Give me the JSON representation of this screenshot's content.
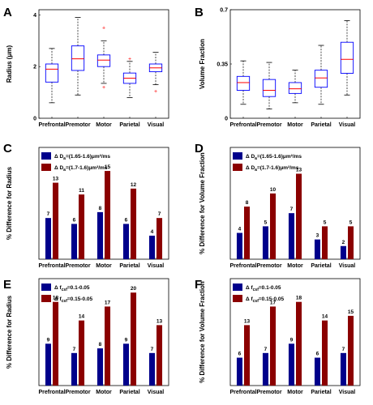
{
  "colors": {
    "blue": "#00008B",
    "red": "#8B0000",
    "box_outline": "#0000FF",
    "median": "#FF0000",
    "outlier": "#FF0000",
    "axis": "#000000"
  },
  "chart_data": [
    {
      "id": "A",
      "type": "boxplot",
      "panel_label": "A",
      "ylabel": "Radius (μm)",
      "categories": [
        "Prefrontal",
        "Premotor",
        "Motor",
        "Parietal",
        "Visual"
      ],
      "ylim": [
        0,
        4.2
      ],
      "yticks": [
        0,
        2,
        4
      ],
      "boxes": [
        {
          "whisker_low": 0.6,
          "q1": 1.4,
          "median": 1.9,
          "q3": 2.1,
          "whisker_high": 2.7,
          "outliers": []
        },
        {
          "whisker_low": 0.9,
          "q1": 1.85,
          "median": 2.3,
          "q3": 2.8,
          "whisker_high": 3.9,
          "outliers": []
        },
        {
          "whisker_low": 1.35,
          "q1": 2.0,
          "median": 2.25,
          "q3": 2.45,
          "whisker_high": 3.0,
          "outliers": [
            3.5,
            1.2
          ]
        },
        {
          "whisker_low": 0.8,
          "q1": 1.35,
          "median": 1.55,
          "q3": 1.75,
          "whisker_high": 2.2,
          "outliers": [
            2.3
          ]
        },
        {
          "whisker_low": 1.3,
          "q1": 1.8,
          "median": 1.95,
          "q3": 2.1,
          "whisker_high": 2.55,
          "outliers": [
            1.05
          ]
        }
      ]
    },
    {
      "id": "B",
      "type": "boxplot",
      "panel_label": "B",
      "ylabel": "Volume Fraction",
      "categories": [
        "Prefrontal",
        "Premotor",
        "Motor",
        "Parietal",
        "Visual"
      ],
      "ylim": [
        0,
        0.7
      ],
      "yticks": [
        0,
        0.35,
        0.7
      ],
      "ytick_labels": [
        "0",
        "0.35",
        "0.7"
      ],
      "boxes": [
        {
          "whisker_low": 0.09,
          "q1": 0.18,
          "median": 0.23,
          "q3": 0.27,
          "whisker_high": 0.37,
          "outliers": []
        },
        {
          "whisker_low": 0.06,
          "q1": 0.14,
          "median": 0.18,
          "q3": 0.25,
          "whisker_high": 0.36,
          "outliers": []
        },
        {
          "whisker_low": 0.1,
          "q1": 0.16,
          "median": 0.19,
          "q3": 0.23,
          "whisker_high": 0.31,
          "outliers": []
        },
        {
          "whisker_low": 0.09,
          "q1": 0.2,
          "median": 0.26,
          "q3": 0.31,
          "whisker_high": 0.47,
          "outliers": []
        },
        {
          "whisker_low": 0.15,
          "q1": 0.29,
          "median": 0.38,
          "q3": 0.49,
          "whisker_high": 0.63,
          "outliers": []
        }
      ]
    },
    {
      "id": "C",
      "type": "bar",
      "panel_label": "C",
      "ylabel": "% Difference for Radius",
      "categories": [
        "Prefrontal",
        "Premotor",
        "Motor",
        "Parietal",
        "Visual"
      ],
      "ylim": [
        0,
        19
      ],
      "series": [
        {
          "legend_pre": "Δ D",
          "legend_sub": "a",
          "legend_post": "=(1.65-1.6)μm²/ms",
          "values": [
            7,
            6,
            8,
            6,
            4
          ]
        },
        {
          "legend_pre": "Δ D",
          "legend_sub": "a",
          "legend_post": "=(1.7-1.6)μm²/ms",
          "values": [
            13,
            11,
            15,
            12,
            7
          ]
        }
      ]
    },
    {
      "id": "D",
      "type": "bar",
      "panel_label": "D",
      "ylabel": "% Difference for Volume Fraction",
      "categories": [
        "Prefrontal",
        "Premotor",
        "Motor",
        "Parietal",
        "Visual"
      ],
      "ylim": [
        0,
        17
      ],
      "series": [
        {
          "legend_pre": "Δ D",
          "legend_sub": "a",
          "legend_post": "=(1.65-1.6)μm²/ms",
          "values": [
            4,
            5,
            7,
            3,
            2
          ]
        },
        {
          "legend_pre": "Δ D",
          "legend_sub": "a",
          "legend_post": "=(1.7-1.6)μm²/ms",
          "values": [
            8,
            10,
            13,
            5,
            5
          ]
        }
      ]
    },
    {
      "id": "E",
      "type": "bar",
      "panel_label": "E",
      "ylabel": "% Difference for Radius",
      "categories": [
        "Prefrontal",
        "Premotor",
        "Motor",
        "Parietal",
        "Visual"
      ],
      "ylim": [
        0,
        23
      ],
      "series": [
        {
          "legend_pre": "Δ f",
          "legend_sub": "csf",
          "legend_post": "=0.1-0.05",
          "values": [
            9,
            7,
            8,
            9,
            7
          ]
        },
        {
          "legend_pre": "Δ f",
          "legend_sub": "csf",
          "legend_post": "=0.15-0.05",
          "values": [
            18,
            14,
            17,
            20,
            13
          ]
        }
      ]
    },
    {
      "id": "F",
      "type": "bar",
      "panel_label": "F",
      "ylabel": "% Difference for Volume Fraction",
      "categories": [
        "Prefrontal",
        "Premotor",
        "Motor",
        "Parietal",
        "Visual"
      ],
      "ylim": [
        0,
        23
      ],
      "series": [
        {
          "legend_pre": "Δ f",
          "legend_sub": "csf",
          "legend_post": "=0.1-0.05",
          "values": [
            6,
            7,
            9,
            6,
            7
          ]
        },
        {
          "legend_pre": "Δ f",
          "legend_sub": "csf",
          "legend_post": "=0.15-0.05",
          "values": [
            13,
            17,
            18,
            14,
            15
          ]
        }
      ]
    }
  ]
}
